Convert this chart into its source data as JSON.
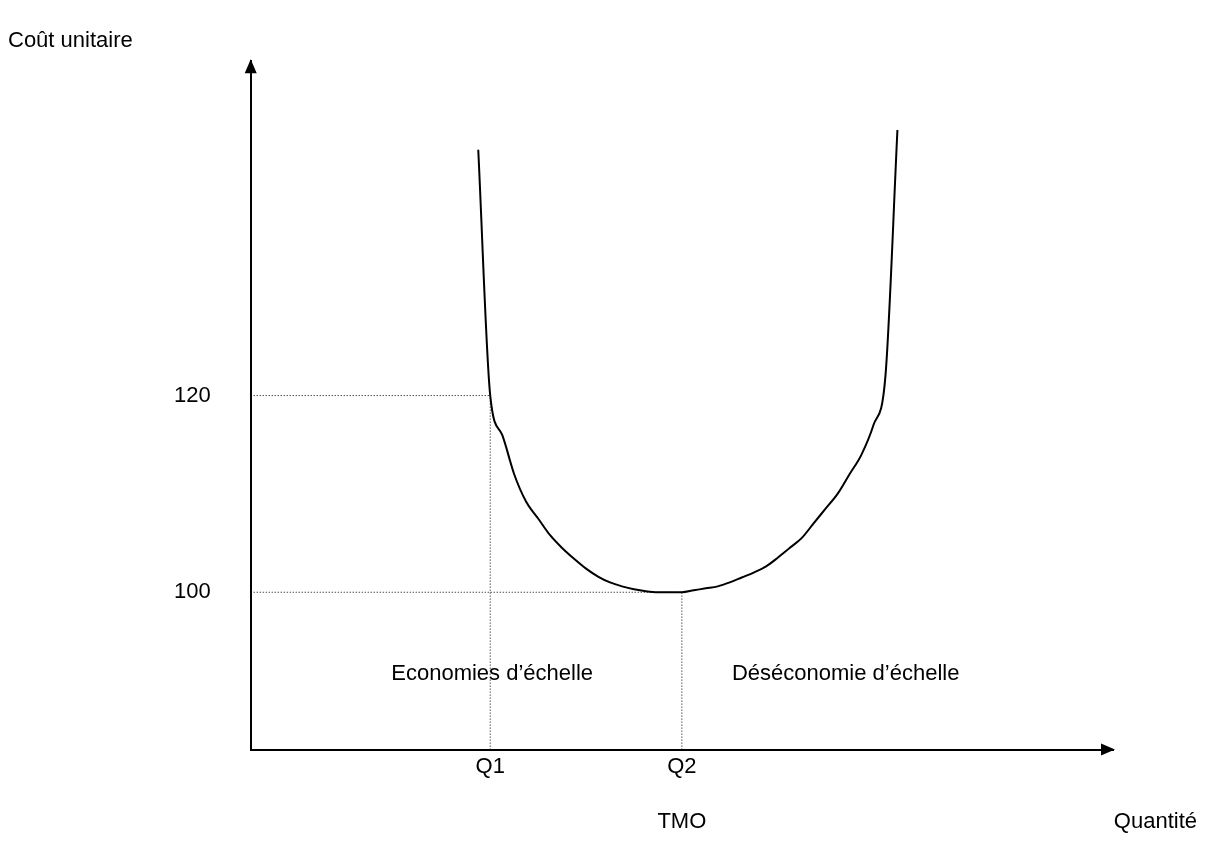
{
  "chart_data": {
    "type": "line",
    "xlabel": "Quantité",
    "ylabel": "Coût unitaire",
    "categories": [
      null,
      null,
      null,
      null,
      null,
      null,
      null,
      null,
      null,
      null,
      null,
      null,
      null,
      null,
      null,
      null,
      null,
      null,
      null,
      null,
      "Q1",
      null,
      null,
      null,
      null,
      null,
      null,
      null,
      null,
      null,
      null,
      null,
      null,
      null,
      null,
      null,
      "Q2",
      null,
      null,
      null,
      null,
      null,
      null,
      null,
      null,
      null,
      null,
      null,
      null,
      null,
      null,
      null,
      null,
      null,
      null,
      null,
      null,
      null,
      null,
      null,
      null,
      null,
      null,
      null,
      null,
      null,
      null,
      null,
      null,
      null,
      null,
      null,
      null
    ],
    "ylim": [
      84,
      154
    ],
    "yticks": [
      100,
      120
    ],
    "grid": false,
    "legend": false,
    "marker": "none",
    "series": [
      {
        "color": "#000000",
        "values": [
          null,
          null,
          null,
          null,
          null,
          null,
          null,
          null,
          null,
          null,
          null,
          null,
          null,
          null,
          null,
          null,
          null,
          null,
          null,
          145,
          120,
          116,
          112,
          109.2,
          107.5,
          105.8,
          104.5,
          103.4,
          102.4,
          101.6,
          101,
          100.6,
          100.3,
          100.1,
          100,
          100,
          100,
          100.2,
          100.4,
          100.6,
          101,
          101.5,
          102,
          102.6,
          103.5,
          104.5,
          105.5,
          107,
          108.5,
          110,
          112,
          114,
          117,
          122,
          147,
          null,
          null,
          null,
          null,
          null,
          null,
          null,
          null,
          null,
          null,
          null,
          null,
          null,
          null,
          null,
          null,
          null,
          null
        ]
      }
    ],
    "ref_lines": [
      {
        "axis": "y",
        "value": 120,
        "color": "#000000",
        "line_style": "dotted"
      },
      {
        "axis": "y",
        "value": 100,
        "color": "#000000",
        "line_style": "dotted"
      },
      {
        "axis": "x",
        "value": "Q1",
        "color": "#000000",
        "line_style": "dotted"
      },
      {
        "axis": "x",
        "value": "Q2",
        "color": "#000000",
        "line_style": "dotted"
      }
    ],
    "annotations": [
      "Economies d’échelle",
      "Déséconomie d’échelle",
      "TMO"
    ]
  }
}
